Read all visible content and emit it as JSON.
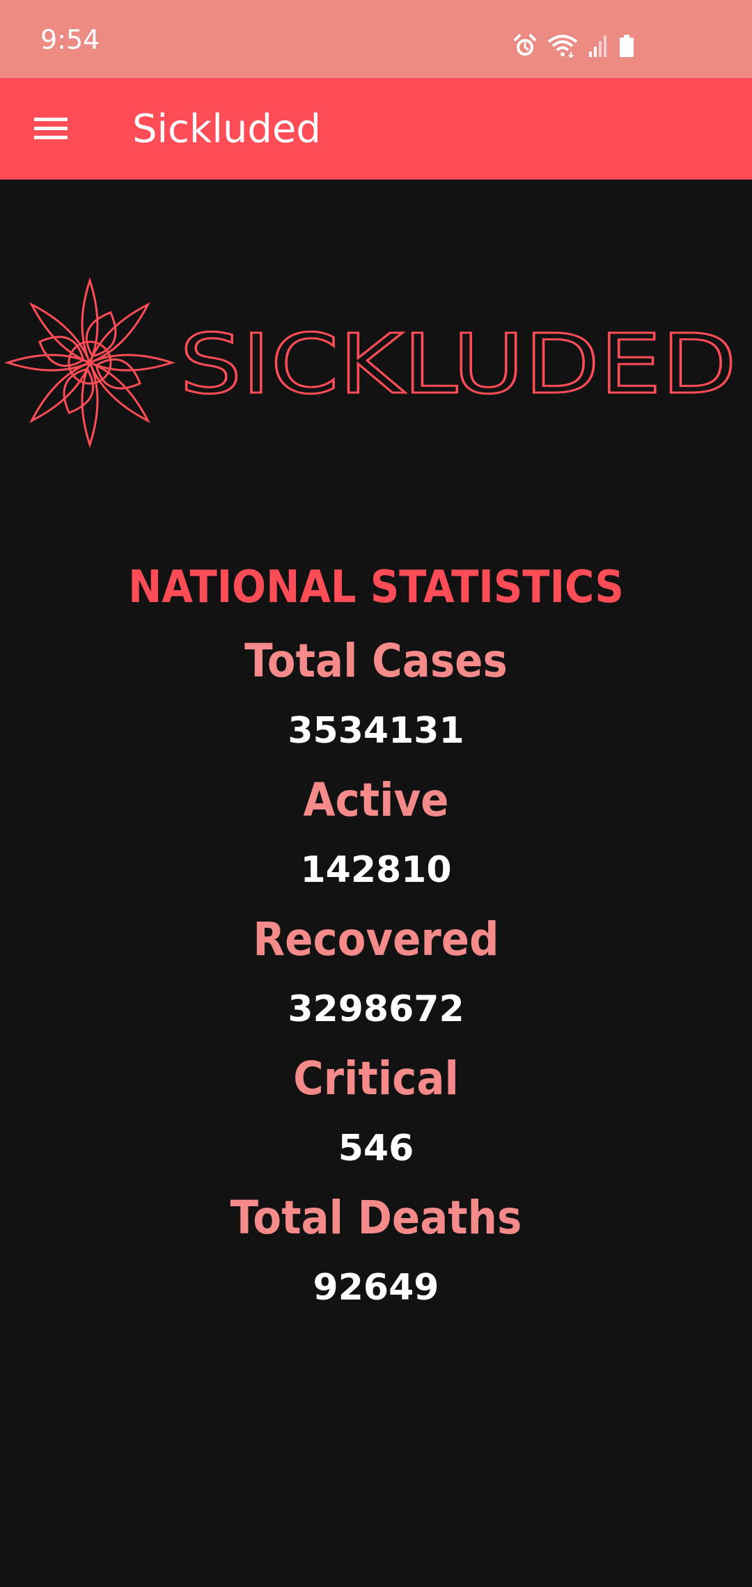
{
  "status_bar": {
    "time": "9:54",
    "icons": [
      "alarm-icon",
      "wifi-icon",
      "signal-icon",
      "battery-icon"
    ]
  },
  "app_bar": {
    "title": "Sickluded",
    "menu_icon": "hamburger-menu-icon"
  },
  "logo": {
    "text": "SICKLUDED",
    "icon": "flower-logo-icon"
  },
  "stats": {
    "heading": "NATIONAL STATISTICS",
    "items": [
      {
        "label": "Total Cases",
        "value": "3534131"
      },
      {
        "label": "Active",
        "value": "142810"
      },
      {
        "label": "Recovered",
        "value": "3298672"
      },
      {
        "label": "Critical",
        "value": "546"
      },
      {
        "label": "Total Deaths",
        "value": "92649"
      }
    ]
  },
  "colors": {
    "status_bar": "#ec8a84",
    "accent": "#fe4d57",
    "label": "#f58a8a",
    "background": "#121212",
    "value": "#ffffff"
  }
}
